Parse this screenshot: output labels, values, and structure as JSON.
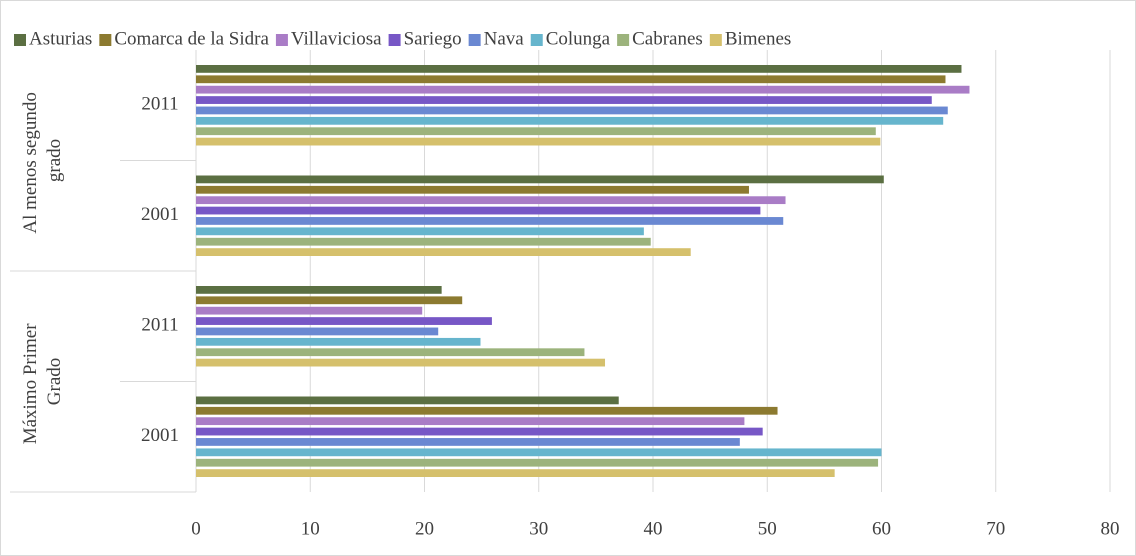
{
  "chart_data": {
    "type": "bar",
    "orientation": "horizontal",
    "groups": [
      "Al menos segundo grado",
      "Máximo Primer Grado"
    ],
    "categories": [
      "2011",
      "2001",
      "2011",
      "2001"
    ],
    "series": [
      {
        "name": "Asturias",
        "color": "#5b6f42",
        "values": [
          67.0,
          60.2,
          21.5,
          37.0
        ]
      },
      {
        "name": "Comarca de la Sidra",
        "color": "#8c7a30",
        "values": [
          65.6,
          48.4,
          23.3,
          50.9
        ]
      },
      {
        "name": "Villaviciosa",
        "color": "#a97cc6",
        "values": [
          67.7,
          51.6,
          19.8,
          48.0
        ]
      },
      {
        "name": "Sariego",
        "color": "#7757c6",
        "values": [
          64.4,
          49.4,
          25.9,
          49.6
        ]
      },
      {
        "name": "Nava",
        "color": "#6a88d2",
        "values": [
          65.8,
          51.4,
          21.2,
          47.6
        ]
      },
      {
        "name": "Colunga",
        "color": "#66b5cd",
        "values": [
          65.4,
          39.2,
          24.9,
          60.0
        ]
      },
      {
        "name": "Cabranes",
        "color": "#9cb37c",
        "values": [
          59.5,
          39.8,
          34.0,
          59.7
        ]
      },
      {
        "name": "Bimenes",
        "color": "#d5c06c",
        "values": [
          59.9,
          43.3,
          35.8,
          55.9
        ]
      }
    ],
    "xlim": [
      0,
      80
    ],
    "xticks": [
      0,
      10,
      20,
      30,
      40,
      50,
      60,
      70,
      80
    ],
    "grid": true,
    "legend": "top"
  }
}
